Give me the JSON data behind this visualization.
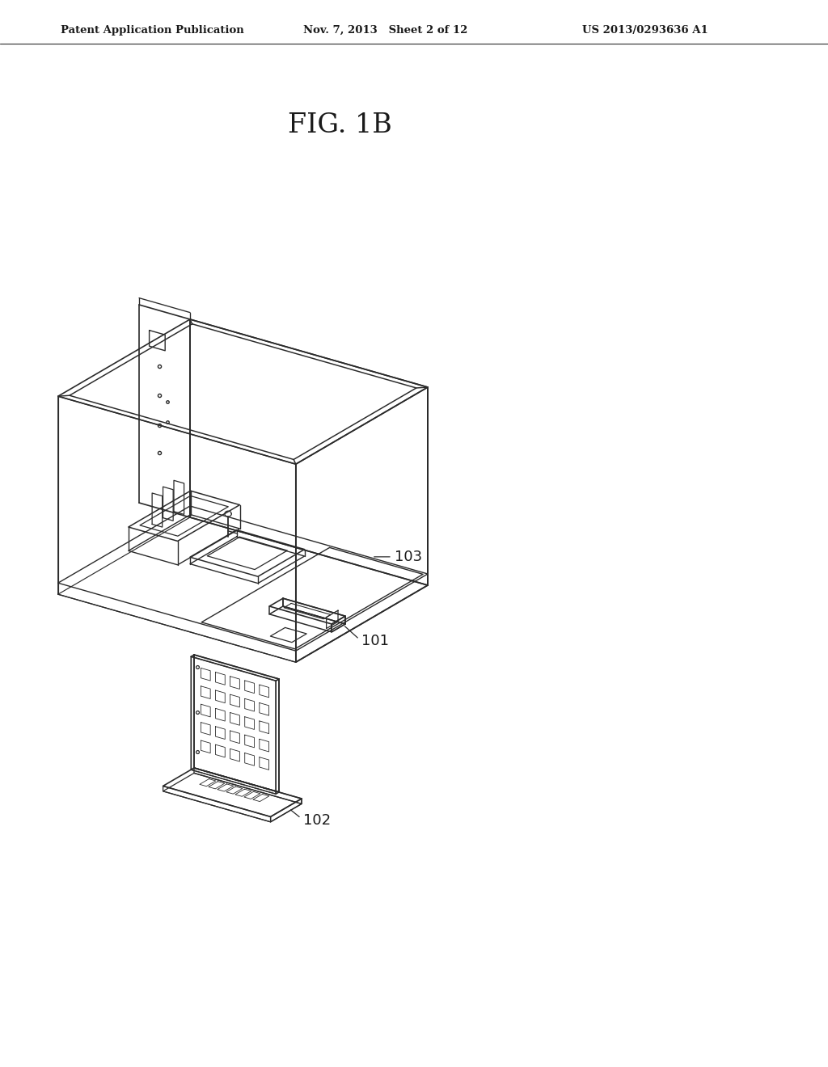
{
  "background_color": "#ffffff",
  "line_color": "#2a2a2a",
  "text_color": "#1a1a1a",
  "header_left": "Patent Application Publication",
  "header_center": "Nov. 7, 2013   Sheet 2 of 12",
  "header_right": "US 2013/0293636 A1",
  "figure_label": "FIG. 1B",
  "label_101": "101",
  "label_102": "102",
  "label_103": "103"
}
